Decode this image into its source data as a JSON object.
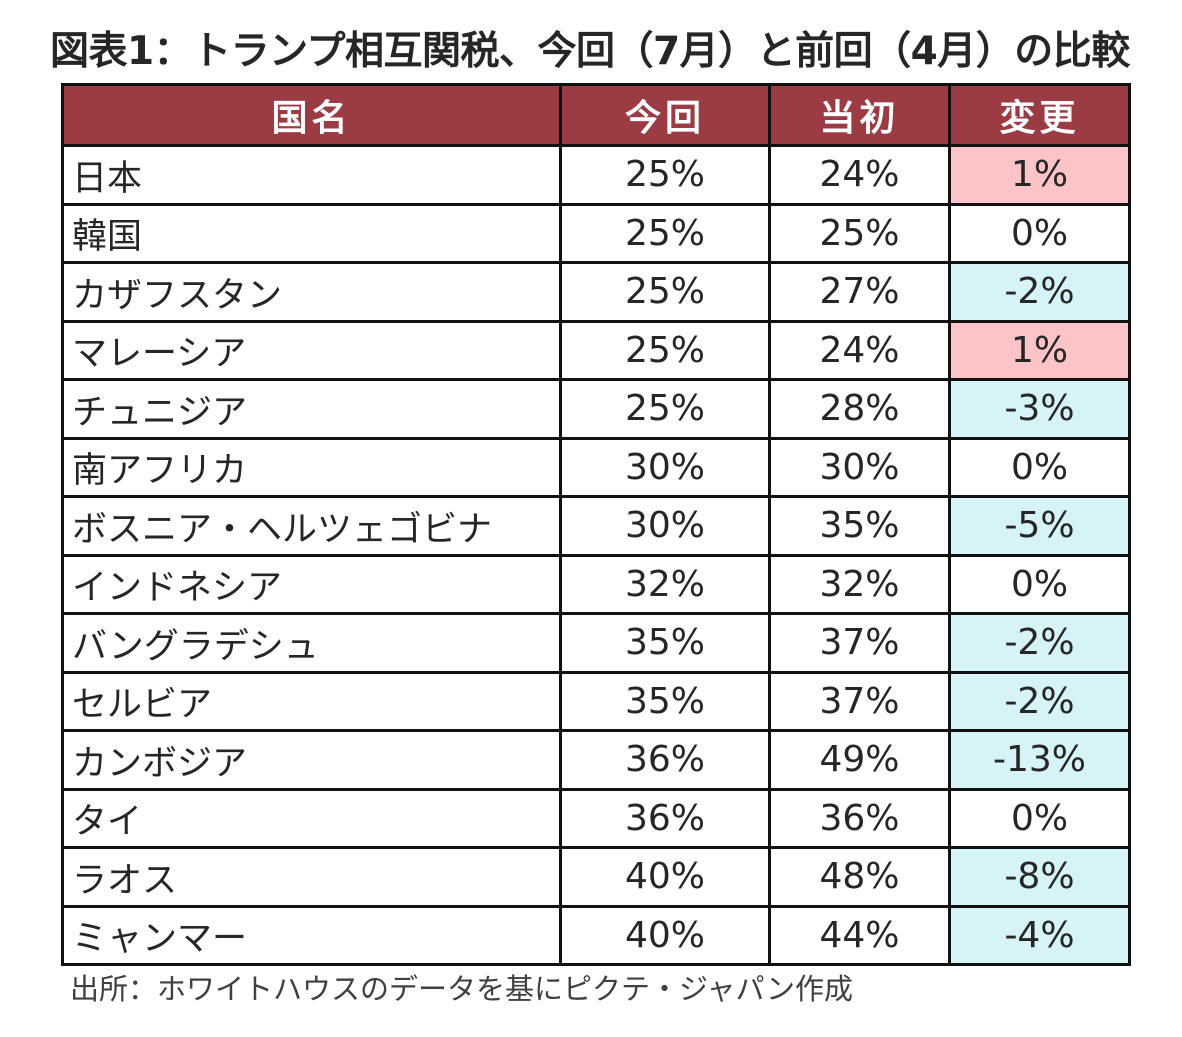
{
  "title": "図表1：トランプ相互関税、今回（7月）と前回（4月）の比較",
  "columns": [
    "国名",
    "今回",
    "当初",
    "変更"
  ],
  "rows": [
    {
      "country": "日本",
      "current": "25%",
      "initial": "24%",
      "change": "1%",
      "tone": "pos"
    },
    {
      "country": "韓国",
      "current": "25%",
      "initial": "25%",
      "change": "0%",
      "tone": "zero"
    },
    {
      "country": "カザフスタン",
      "current": "25%",
      "initial": "27%",
      "change": "-2%",
      "tone": "neg"
    },
    {
      "country": "マレーシア",
      "current": "25%",
      "initial": "24%",
      "change": "1%",
      "tone": "pos"
    },
    {
      "country": "チュニジア",
      "current": "25%",
      "initial": "28%",
      "change": "-3%",
      "tone": "neg"
    },
    {
      "country": "南アフリカ",
      "current": "30%",
      "initial": "30%",
      "change": "0%",
      "tone": "zero"
    },
    {
      "country": "ボスニア・ヘルツェゴビナ",
      "current": "30%",
      "initial": "35%",
      "change": "-5%",
      "tone": "neg"
    },
    {
      "country": "インドネシア",
      "current": "32%",
      "initial": "32%",
      "change": "0%",
      "tone": "zero"
    },
    {
      "country": "バングラデシュ",
      "current": "35%",
      "initial": "37%",
      "change": "-2%",
      "tone": "neg"
    },
    {
      "country": "セルビア",
      "current": "35%",
      "initial": "37%",
      "change": "-2%",
      "tone": "neg"
    },
    {
      "country": "カンボジア",
      "current": "36%",
      "initial": "49%",
      "change": "-13%",
      "tone": "neg"
    },
    {
      "country": "タイ",
      "current": "36%",
      "initial": "36%",
      "change": "0%",
      "tone": "zero"
    },
    {
      "country": "ラオス",
      "current": "40%",
      "initial": "48%",
      "change": "-8%",
      "tone": "neg"
    },
    {
      "country": "ミャンマー",
      "current": "40%",
      "initial": "44%",
      "change": "-4%",
      "tone": "neg"
    }
  ],
  "source": "出所：ホワイトハウスのデータを基にピクテ・ジャパン作成",
  "colors": {
    "header_bg": "#9b3b43",
    "increase_bg": "#fcc4c7",
    "decrease_bg": "#d6f3f7"
  }
}
